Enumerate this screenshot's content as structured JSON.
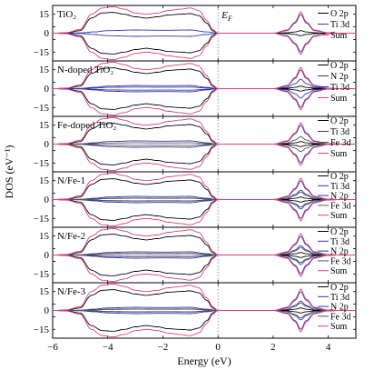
{
  "chart_data": {
    "type": "line",
    "xlabel": "Energy (eV)",
    "ylabel": "DOS (eV⁻¹)",
    "xlim": [
      -6,
      5
    ],
    "xticks": [
      -6,
      -4,
      -2,
      0,
      2,
      4
    ],
    "ylim": [
      -22,
      22
    ],
    "yticks": [
      -15,
      -5,
      0,
      5,
      15
    ],
    "fermi_label": "E",
    "fermi_sub": "F",
    "colors": {
      "O 2p": "#000000",
      "Ti 3d": "#3333aa",
      "N 2p": "#3333aa",
      "Fe 3d": "#555555",
      "Sum": "#e0407a"
    },
    "panels": [
      {
        "label": "TiO₂",
        "legend": [
          "O 2p",
          "Ti 3d",
          "Sum"
        ],
        "show_fermi_label": true
      },
      {
        "label": "N-doped TiO₂",
        "legend": [
          "O 2p",
          "N 2p",
          "Ti 3d",
          "Sum"
        ]
      },
      {
        "label": "Fe-doped TiO₂",
        "legend": [
          "O 2p",
          "Ti 3d",
          "Fe 3d",
          "Sum"
        ]
      },
      {
        "label": "N/Fe-1",
        "legend": [
          "O 2p",
          "Ti 3d",
          "N 2p",
          "Fe 3d",
          "Sum"
        ]
      },
      {
        "label": "N/Fe-2",
        "legend": [
          "O 2p",
          "Ti 3d",
          "N 2p",
          "Fe 3d",
          "Sum"
        ]
      },
      {
        "label": "N/Fe-3",
        "legend": [
          "O 2p",
          "Ti 3d",
          "N 2p",
          "Fe 3d",
          "Sum"
        ]
      }
    ],
    "series": [
      {
        "name": "O 2p",
        "x": [
          -6,
          -5.5,
          -5,
          -4.6,
          -4.2,
          -3.8,
          -3.4,
          -3,
          -2.6,
          -2.2,
          -1.8,
          -1.4,
          -1,
          -0.7,
          -0.4,
          -0.2,
          0,
          0.5,
          1,
          1.5,
          2,
          2.5,
          2.8,
          3,
          3.2,
          3.5,
          4,
          4.5,
          5
        ],
        "y": [
          0,
          0.3,
          2,
          12,
          16,
          16.5,
          15,
          13,
          12,
          13,
          14.5,
          15,
          15.5,
          14,
          8,
          2,
          0,
          0,
          0,
          0,
          0,
          0.3,
          1,
          2,
          1,
          0.3,
          0,
          0,
          0
        ]
      },
      {
        "name": "Ti 3d",
        "x": [
          -6,
          -5,
          -4.5,
          -4,
          -3,
          -2,
          -1,
          -0.4,
          0,
          0.5,
          1,
          1.5,
          2,
          2.5,
          2.8,
          3,
          3.2,
          3.5,
          4,
          4.5,
          5
        ],
        "y": [
          0,
          0.2,
          1,
          2,
          2.5,
          2.3,
          2.5,
          1,
          0,
          0,
          0,
          0,
          0,
          2,
          8,
          15,
          8,
          2,
          0.3,
          0,
          0
        ]
      },
      {
        "name": "Sum",
        "x": [
          -6,
          -5.5,
          -5,
          -4.6,
          -4.2,
          -3.8,
          -3.4,
          -3,
          -2.6,
          -2.2,
          -1.8,
          -1.4,
          -1,
          -0.7,
          -0.4,
          -0.2,
          0,
          0.5,
          1,
          1.5,
          2,
          2.5,
          2.8,
          3,
          3.2,
          3.5,
          4,
          4.5,
          5
        ],
        "y": [
          0,
          0.5,
          3,
          15,
          20,
          21,
          19,
          16,
          15,
          16,
          18,
          19,
          20,
          18,
          10,
          3,
          0,
          0,
          0,
          0,
          0,
          2.5,
          9,
          17,
          9,
          2.5,
          0.3,
          0,
          0
        ]
      }
    ]
  }
}
